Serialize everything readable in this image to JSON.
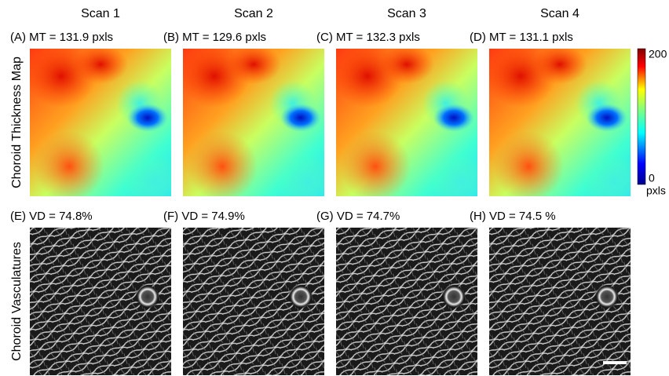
{
  "columns": [
    "Scan 1",
    "Scan 2",
    "Scan 3",
    "Scan 4"
  ],
  "rows": [
    {
      "label": "Choroid Thickness Map",
      "panels": [
        "(A) MT = 131.9 pxls",
        "(B) MT = 129.6 pxls",
        "(C) MT = 132.3 pxls",
        "(D) MT = 131.1 pxls"
      ]
    },
    {
      "label": "Choroid Vasculatures",
      "panels": [
        "(E) VD =  74.8%",
        "(F) VD =  74.9%",
        "(G) VD = 74.7%",
        "(H) VD = 74.5 %"
      ]
    }
  ],
  "colorbar": {
    "ticks": [
      200,
      0
    ],
    "unit": "pxls"
  }
}
